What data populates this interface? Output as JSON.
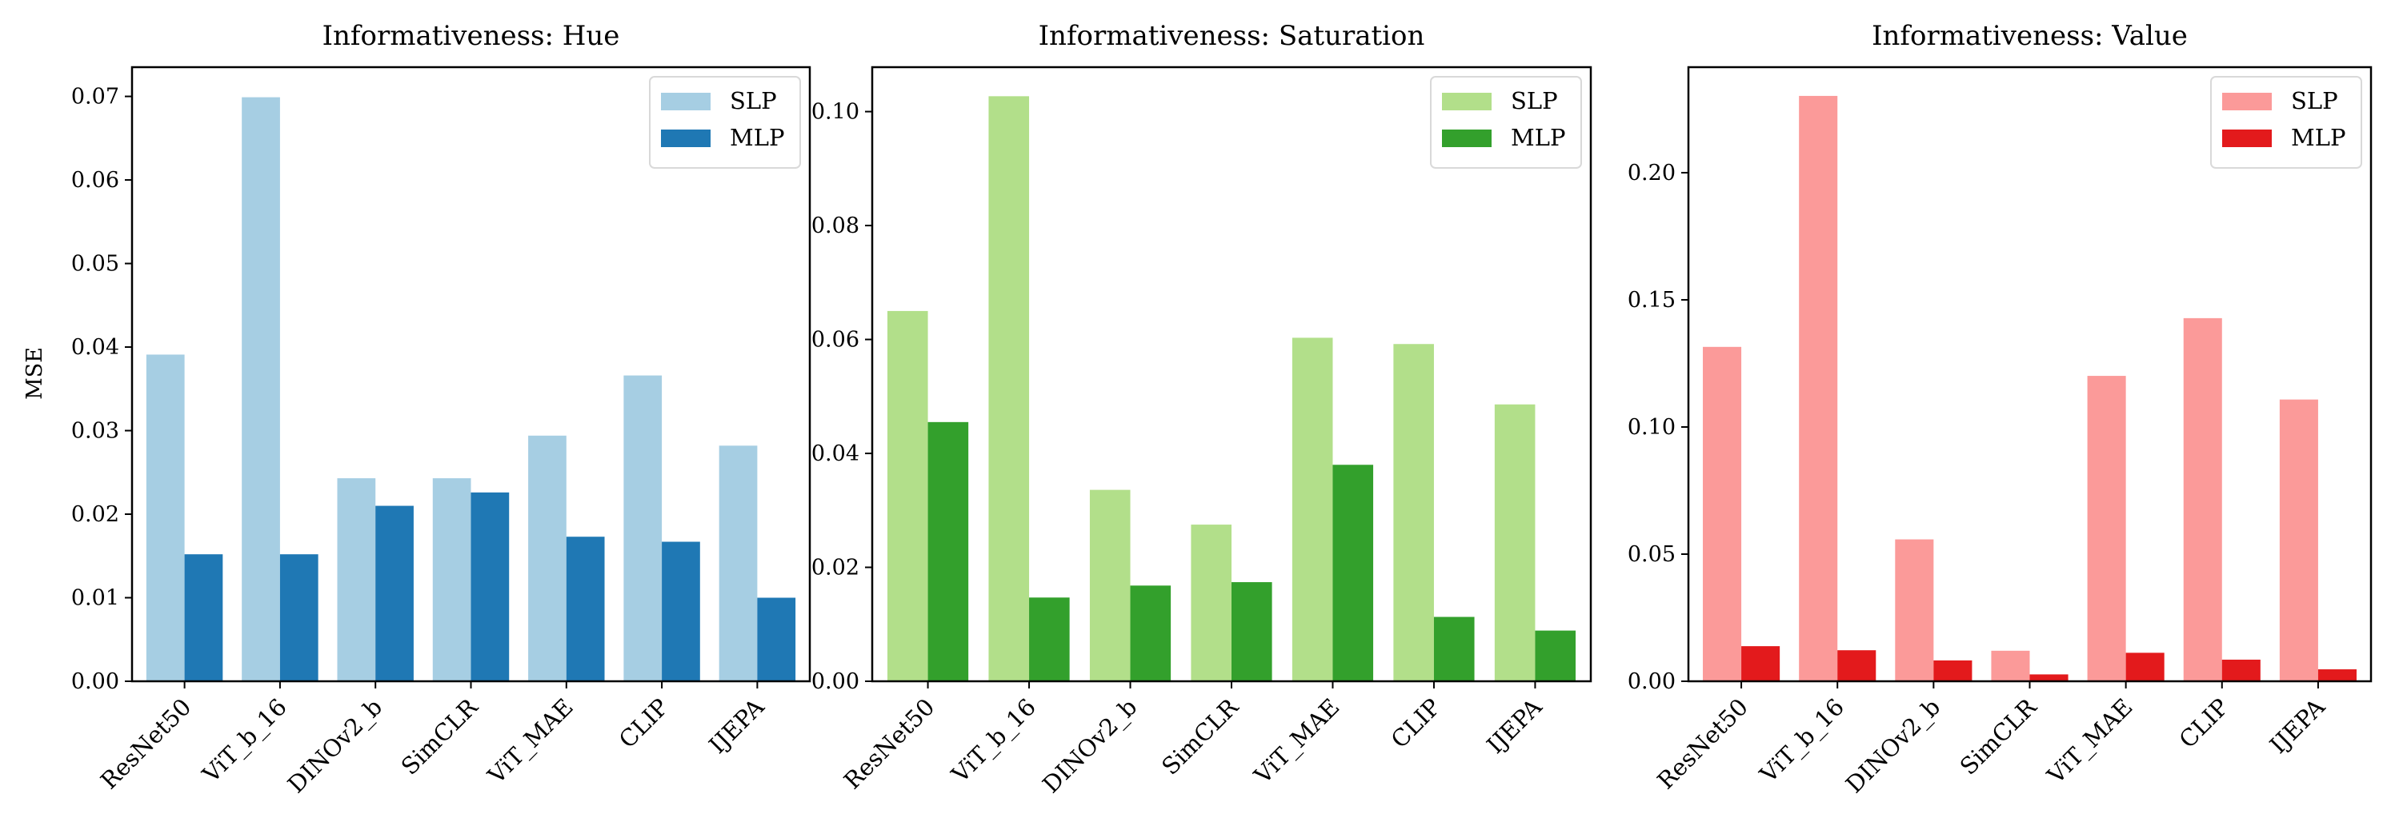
{
  "figure": {
    "ylabel": "MSE"
  },
  "chart_data": [
    {
      "type": "bar",
      "title": "Informativeness: Hue",
      "xlabel": "",
      "ylabel": "MSE",
      "categories": [
        "ResNet50",
        "ViT_b_16",
        "DINOv2_b",
        "SimCLR",
        "ViT_MAE",
        "CLIP",
        "IJEPA"
      ],
      "series": [
        {
          "name": "SLP",
          "color": "#a6cee3",
          "values": [
            0.0391,
            0.0699,
            0.0243,
            0.0243,
            0.0294,
            0.0366,
            0.0282
          ]
        },
        {
          "name": "MLP",
          "color": "#1f78b4",
          "values": [
            0.0152,
            0.0152,
            0.021,
            0.0226,
            0.0173,
            0.0167,
            0.01
          ]
        }
      ],
      "ylim": [
        0,
        0.0735
      ],
      "yticks": [
        "0.00",
        "0.01",
        "0.02",
        "0.03",
        "0.04",
        "0.05",
        "0.06",
        "0.07"
      ],
      "legend": "top-right",
      "grid": false
    },
    {
      "type": "bar",
      "title": "Informativeness: Saturation",
      "xlabel": "",
      "ylabel": "",
      "categories": [
        "ResNet50",
        "ViT_b_16",
        "DINOv2_b",
        "SimCLR",
        "ViT_MAE",
        "CLIP",
        "IJEPA"
      ],
      "series": [
        {
          "name": "SLP",
          "color": "#b2df8a",
          "values": [
            0.065,
            0.1027,
            0.0336,
            0.0275,
            0.0603,
            0.0592,
            0.0486
          ]
        },
        {
          "name": "MLP",
          "color": "#33a02c",
          "values": [
            0.0455,
            0.0147,
            0.0168,
            0.0174,
            0.038,
            0.0113,
            0.0089
          ]
        }
      ],
      "ylim": [
        0,
        0.1078
      ],
      "yticks": [
        "0.00",
        "0.02",
        "0.04",
        "0.06",
        "0.08",
        "0.10"
      ],
      "legend": "top-right",
      "grid": false
    },
    {
      "type": "bar",
      "title": "Informativeness: Value",
      "xlabel": "",
      "ylabel": "",
      "categories": [
        "ResNet50",
        "ViT_b_16",
        "DINOv2_b",
        "SimCLR",
        "ViT_MAE",
        "CLIP",
        "IJEPA"
      ],
      "series": [
        {
          "name": "SLP",
          "color": "#fb9a99",
          "values": [
            0.1315,
            0.2302,
            0.0558,
            0.012,
            0.1201,
            0.1428,
            0.1108
          ]
        },
        {
          "name": "MLP",
          "color": "#e31a1c",
          "values": [
            0.0138,
            0.0122,
            0.0082,
            0.0027,
            0.0112,
            0.0085,
            0.0047
          ]
        }
      ],
      "ylim": [
        0,
        0.2415
      ],
      "yticks": [
        "0.00",
        "0.05",
        "0.10",
        "0.15",
        "0.20"
      ],
      "legend": "top-right",
      "grid": false
    }
  ]
}
